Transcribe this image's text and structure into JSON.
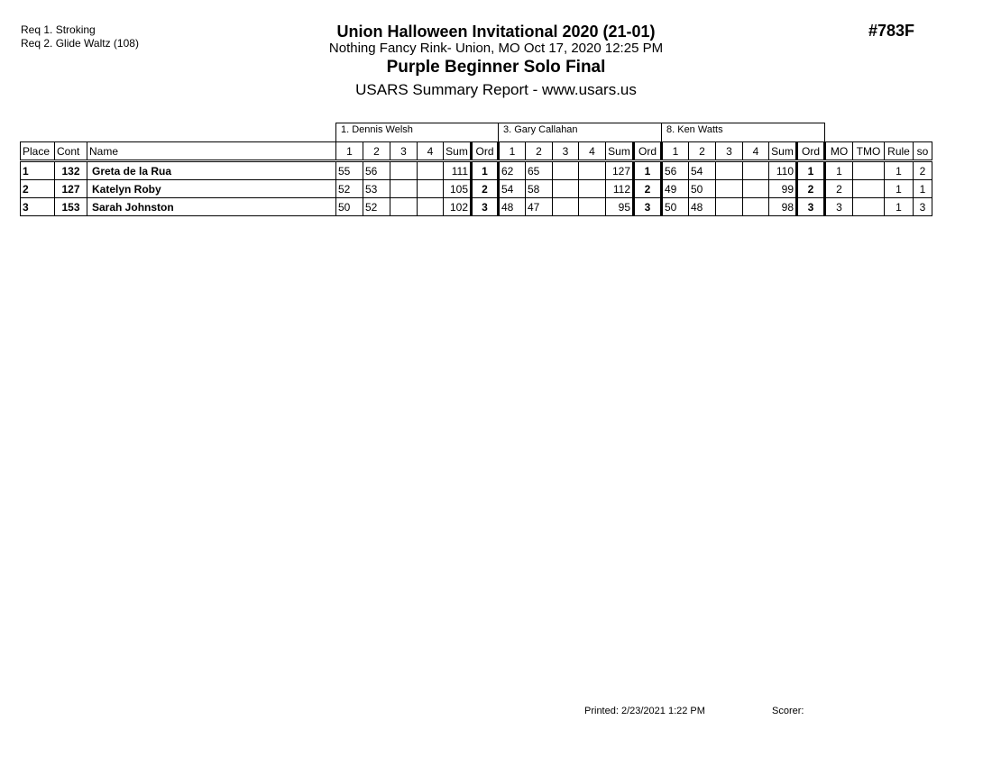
{
  "requirements": [
    "Req  1.  Stroking",
    "Req  2.  Glide Waltz (108)"
  ],
  "header": {
    "title": "Union Halloween Invitational 2020 (21-01)",
    "location": "Nothing Fancy Rink- Union, MO  Oct 17, 2020  12:25 PM",
    "event": "Purple Beginner Solo Final",
    "report": "USARS Summary Report - www.usars.us",
    "event_number": "#783F"
  },
  "table": {
    "judges": [
      "1.  Dennis Welsh",
      "3.  Gary Callahan",
      "8.  Ken Watts"
    ],
    "columns": {
      "place": "Place",
      "cont": "Cont",
      "name": "Name",
      "marks": [
        "1",
        "2",
        "3",
        "4"
      ],
      "sum": "Sum",
      "ord": "Ord",
      "mo": "MO",
      "tmo": "TMO",
      "rule": "Rule",
      "so": "so"
    },
    "rows": [
      {
        "place": "1",
        "cont": "132",
        "name": "Greta de la Rua",
        "judges": [
          {
            "marks": [
              "55",
              "56",
              "",
              ""
            ],
            "sum": "111",
            "ord": "1"
          },
          {
            "marks": [
              "62",
              "65",
              "",
              ""
            ],
            "sum": "127",
            "ord": "1"
          },
          {
            "marks": [
              "56",
              "54",
              "",
              ""
            ],
            "sum": "110",
            "ord": "1"
          }
        ],
        "mo": "1",
        "tmo": "",
        "rule": "1",
        "so": "2"
      },
      {
        "place": "2",
        "cont": "127",
        "name": "Katelyn Roby",
        "judges": [
          {
            "marks": [
              "52",
              "53",
              "",
              ""
            ],
            "sum": "105",
            "ord": "2"
          },
          {
            "marks": [
              "54",
              "58",
              "",
              ""
            ],
            "sum": "112",
            "ord": "2"
          },
          {
            "marks": [
              "49",
              "50",
              "",
              ""
            ],
            "sum": "99",
            "ord": "2"
          }
        ],
        "mo": "2",
        "tmo": "",
        "rule": "1",
        "so": "1"
      },
      {
        "place": "3",
        "cont": "153",
        "name": "Sarah Johnston",
        "judges": [
          {
            "marks": [
              "50",
              "52",
              "",
              ""
            ],
            "sum": "102",
            "ord": "3"
          },
          {
            "marks": [
              "48",
              "47",
              "",
              ""
            ],
            "sum": "95",
            "ord": "3"
          },
          {
            "marks": [
              "50",
              "48",
              "",
              ""
            ],
            "sum": "98",
            "ord": "3"
          }
        ],
        "mo": "3",
        "tmo": "",
        "rule": "1",
        "so": "3"
      }
    ]
  },
  "footer": {
    "printed": "Printed:  2/23/2021  1:22 PM",
    "scorer": "Scorer:"
  }
}
